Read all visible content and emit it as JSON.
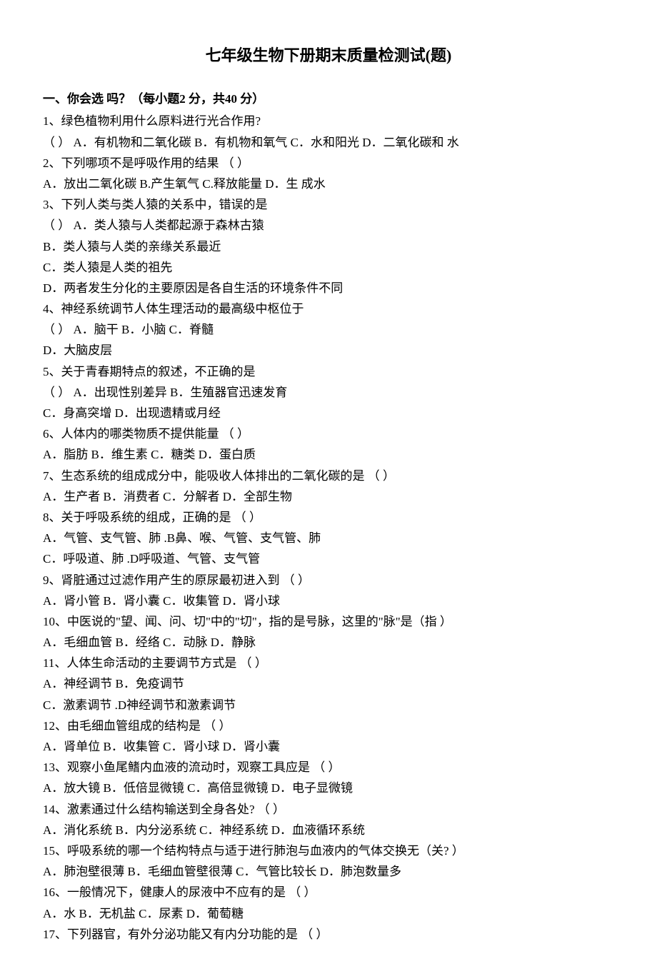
{
  "title": "七年级生物下册期末质量检测试(题)",
  "section1": {
    "header": "一、你会选 吗？（每小题2 分，共40 分）",
    "q1": {
      "stem": "1、绿色植物利用什么原料进行光合作用?",
      "line2": "（       ） A．有机物和二氧化碳  B．有机物和氧气 C．水和阳光   D．二氧化碳和 水"
    },
    "q2": {
      "stem": "2、下列哪项不是呼吸作用的结果                                  （      ）",
      "options": "A．放出二氧化碳          B.产生氧气           C.释放能量    D．生 成水"
    },
    "q3": {
      "stem": "3、下列人类与类人猿的关系中，错误的是",
      "line2": "（      ） A．类人猿与人类都起源于森林古猿",
      "optB": "B．类人猿与人类的亲缘关系最近",
      "optC": "C．类人猿是人类的祖先",
      "optD": "D．两者发生分化的主要原因是各自生活的环境条件不同"
    },
    "q4": {
      "stem": "4、神经系统调节人体生理活动的最高级中枢位于",
      "line2": "（       ） A．脑干              B．小脑              C．脊髓",
      "optD": "D．大脑皮层"
    },
    "q5": {
      "stem": "5、关于青春期特点的叙述，不正确的是",
      "line2": "（       ） A．出现性别差异                       B．生殖器官迅速发育",
      "line3": "C．身高突增                              D．出现遗精或月经"
    },
    "q6": {
      "stem": "6、人体内的哪类物质不提供能量                                （      ）",
      "options": "A．脂肪             B．维生素          C．糖类              D．蛋白质"
    },
    "q7": {
      "stem": "7、生态系统的组成成分中，能吸收人体排出的二氧化碳的是           （      ）",
      "options": "A．生产者         B．消费者          C．分解者           D．全部生物"
    },
    "q8": {
      "stem": "8、关于呼吸系统的组成，正确的是                                                                （     ）",
      "line2": "A．气管、支气管、肺                    .B鼻、喉、气管、支气管、肺",
      "line3": "C．呼吸道、肺                            .D呼吸道、气管、支气管"
    },
    "q9": {
      "stem": "9、肾脏通过过滤作用产生的原尿最初进入到                                            （      ）",
      "options": "A．肾小管          B．肾小囊          C．收集管            D．肾小球"
    },
    "q10": {
      "stem": "10、中医说的\"望、闻、问、切\"中的\"切\"，指的是号脉，这里的\"脉\"是（指     ）",
      "options": "A．毛细血管       B．经络              C．动脉                D．静脉"
    },
    "q11": {
      "stem": "11、人体生命活动的主要调节方式是                                                                （     ）",
      "line2": "A．神经调节                               B．免疫调节",
      "line3": "C．激素调节                 .D神经调节和激素调节"
    },
    "q12": {
      "stem": "12、由毛细血管组成的结构是                                                                     （     ）",
      "options": "A．肾单位          B．收集管          C．肾小球          D．肾小囊"
    },
    "q13": {
      "stem": "13、观察小鱼尾鳍内血液的流动时，观察工具应是                                    （      ）",
      "options": "A．放大镜          B．低倍显微镜  C．高倍显微镜  D．电子显微镜"
    },
    "q14": {
      "stem": "14、激素通过什么结构输送到全身各处?                                                     （     ）",
      "options": "A．消化系统      B．内分泌系统   C．神经系统     D．血液循环系统"
    },
    "q15": {
      "stem": "15、呼吸系统的哪一个结构特点与适于进行肺泡与血液内的气体交换无（关?  ）",
      "options": "A．肺泡壁很薄  B．毛细血管壁很薄 C．气管比较长  D．肺泡数量多"
    },
    "q16": {
      "stem": "16、一般情况下，健康人的尿液中不应有的是                                            （      ）",
      "options": "A．水                   B．无机盐               C．尿素               D．葡萄糖"
    },
    "q17": {
      "stem": "17、下列器官，有外分泌功能又有内分功能的是                                        （      ）"
    }
  }
}
